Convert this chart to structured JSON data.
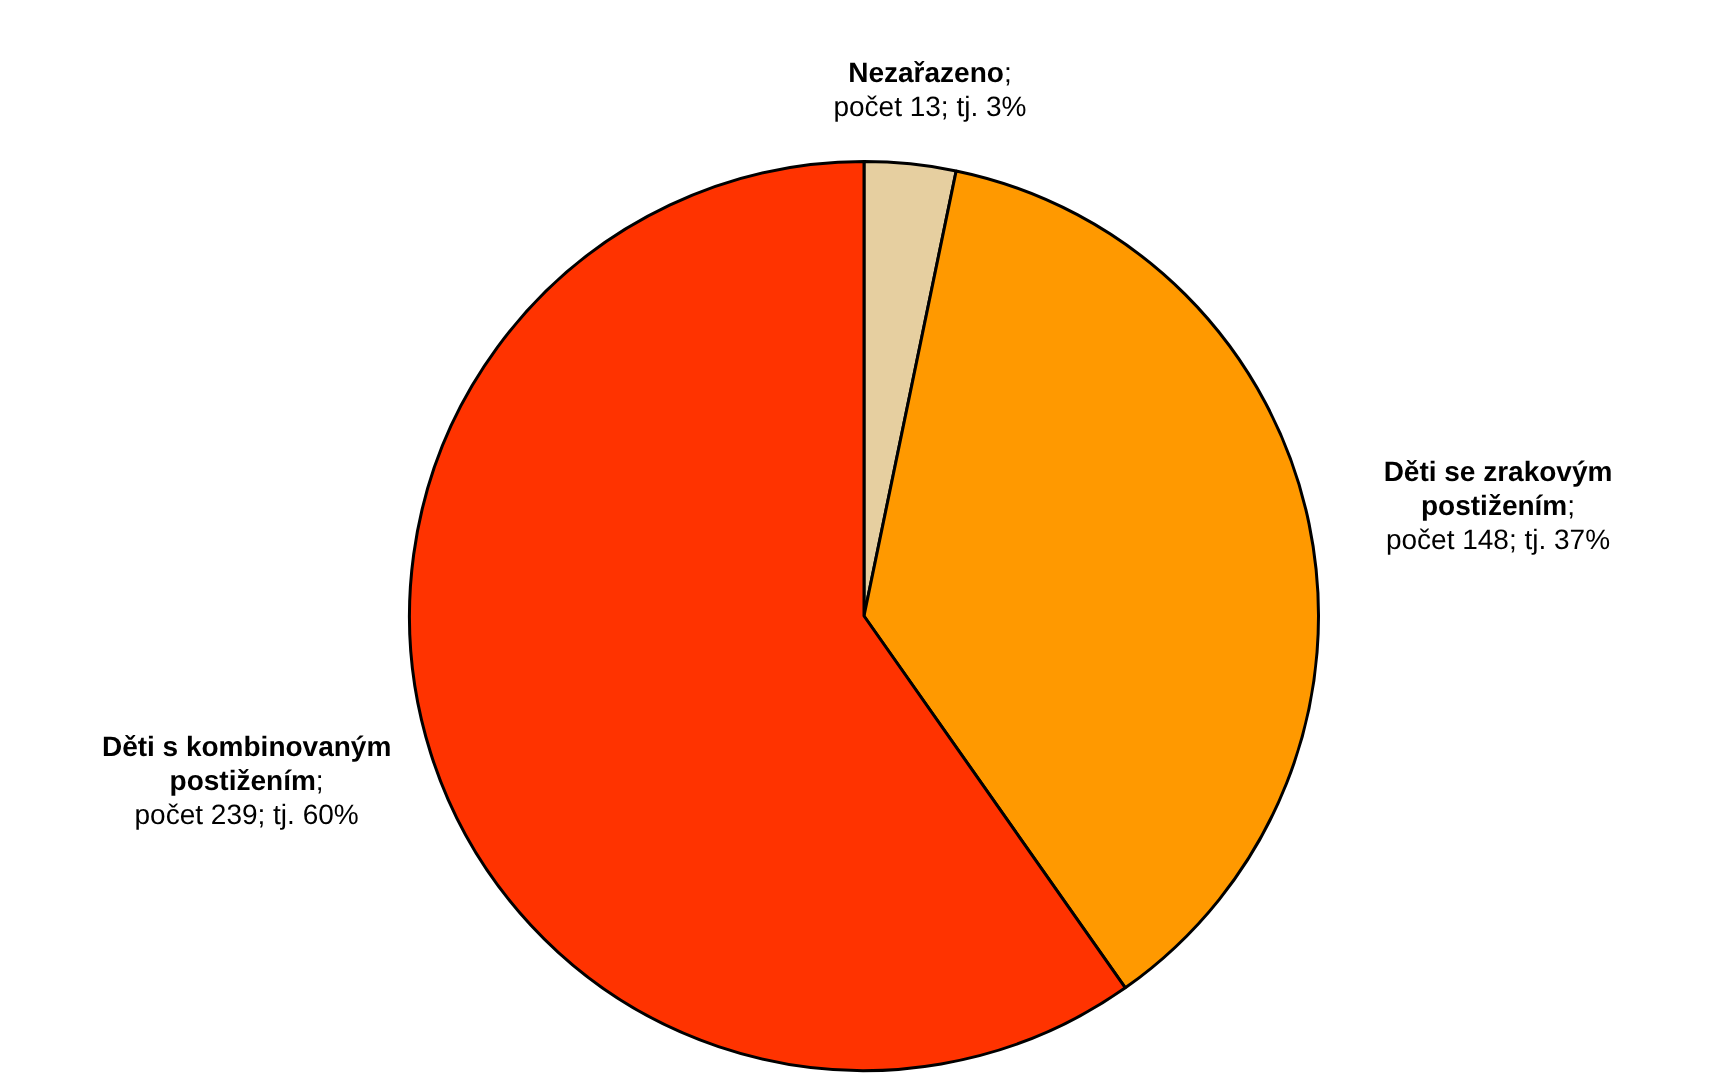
{
  "chart_data": {
    "type": "pie",
    "categories": [
      "Nezařazeno",
      "Děti se zrakovým postižením",
      "Děti s kombinovaným postižením"
    ],
    "values": [
      13,
      148,
      239
    ],
    "colors": [
      "#e6cfa0",
      "#ff9900",
      "#ff3300"
    ],
    "value_labels": [
      ";\npočet 13; tj. 3%",
      ";\npočet 148; tj. 37%",
      ";\npočet 239; tj. 60%"
    ],
    "legend": false
  }
}
